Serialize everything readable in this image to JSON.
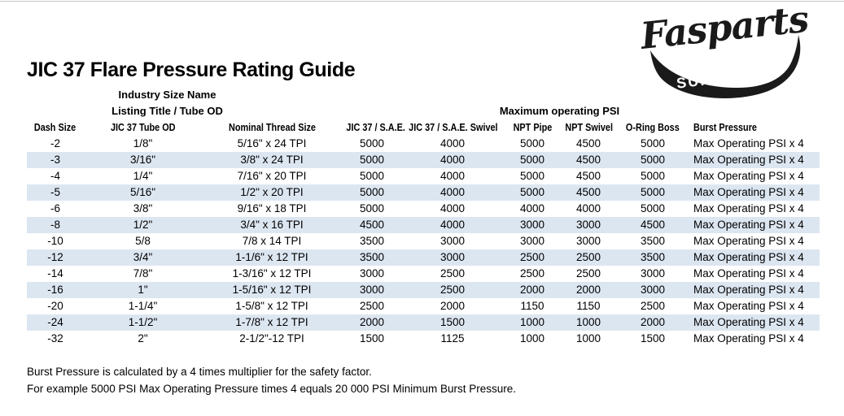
{
  "page": {
    "title_text": "JIC 37 Flare Pressure Rating Guide"
  },
  "logo": {
    "brand": "Fasparts",
    "subtitle": "SUPPLY CO."
  },
  "table": {
    "group_headers": {
      "industry_line1": "Industry Size Name",
      "industry_line2": "Listing Title / Tube OD",
      "max_operating": "Maximum operating PSI"
    },
    "columns": [
      "Dash Size",
      "JIC 37 Tube OD",
      "Nominal Thread Size",
      "JIC 37 / S.A.E.",
      "JIC 37 / S.A.E. Swivel",
      "NPT Pipe",
      "NPT Swivel",
      "O-Ring Boss",
      "Burst Pressure"
    ],
    "rows": [
      [
        "-2",
        "1/8\"",
        "5/16\" x 24 TPI",
        "5000",
        "4000",
        "5000",
        "4500",
        "5000",
        "Max Operating PSI x 4"
      ],
      [
        "-3",
        "3/16\"",
        "3/8\" x 24 TPI",
        "5000",
        "4000",
        "5000",
        "4500",
        "5000",
        "Max Operating PSI x 4"
      ],
      [
        "-4",
        "1/4\"",
        "7/16\" x 20 TPI",
        "5000",
        "4000",
        "5000",
        "4500",
        "5000",
        "Max Operating PSI x 4"
      ],
      [
        "-5",
        "5/16\"",
        "1/2\" x 20 TPI",
        "5000",
        "4000",
        "5000",
        "4500",
        "5000",
        "Max Operating PSI x 4"
      ],
      [
        "-6",
        "3/8\"",
        "9/16\" x 18 TPI",
        "5000",
        "4000",
        "4000",
        "4000",
        "5000",
        "Max Operating PSI x 4"
      ],
      [
        "-8",
        "1/2\"",
        "3/4\" x 16 TPI",
        "4500",
        "4000",
        "3000",
        "3000",
        "4500",
        "Max Operating PSI x 4"
      ],
      [
        "-10",
        "5/8",
        "7/8 x 14 TPI",
        "3500",
        "3000",
        "3000",
        "3000",
        "3500",
        "Max Operating PSI x 4"
      ],
      [
        "-12",
        "3/4\"",
        "1-1/6\" x 12 TPI",
        "3500",
        "3000",
        "2500",
        "2500",
        "3500",
        "Max Operating PSI x 4"
      ],
      [
        "-14",
        "7/8\"",
        "1-3/16\" x 12 TPI",
        "3000",
        "2500",
        "2500",
        "2500",
        "3000",
        "Max Operating PSI x 4"
      ],
      [
        "-16",
        "1\"",
        "1-5/16\" x 12 TPI",
        "3000",
        "2500",
        "2000",
        "2000",
        "3000",
        "Max Operating PSI x 4"
      ],
      [
        "-20",
        "1-1/4\"",
        "1-5/8\" x 12 TPI",
        "2500",
        "2000",
        "1150",
        "1150",
        "2500",
        "Max Operating PSI x 4"
      ],
      [
        "-24",
        "1-1/2\"",
        "1-7/8\" x 12 TPI",
        "2000",
        "1500",
        "1000",
        "1000",
        "2000",
        "Max Operating PSI x 4"
      ],
      [
        "-32",
        "2\"",
        "2-1/2\"-12 TPI",
        "1500",
        "1125",
        "1000",
        "1000",
        "1500",
        "Max Operating PSI x 4"
      ]
    ]
  },
  "footer": {
    "line1": "Burst Pressure is calculated by a 4 times multiplier for the safety factor.",
    "line2": "For example 5000 PSI Max Operating Pressure times 4 equals 20 000 PSI Minimum Burst Pressure."
  },
  "colors": {
    "stripe": "#dce6f1",
    "text": "#000000",
    "logo_ink": "#1a1a1a"
  }
}
